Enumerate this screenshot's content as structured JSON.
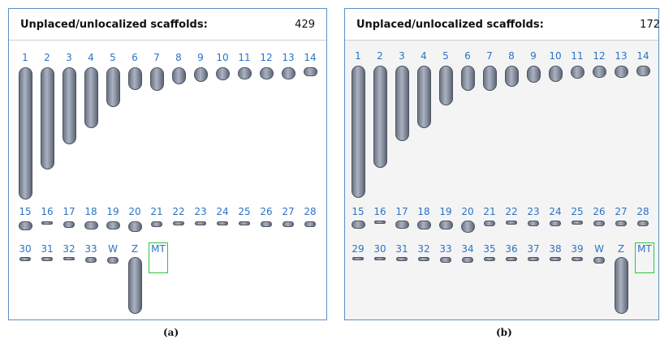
{
  "panels": [
    {
      "id": "a",
      "header_label": "Unplaced/unlocalized scaffolds:",
      "header_count": "429",
      "caption": "(a)",
      "rows": [
        [
          {
            "label": "1",
            "length": 1.0
          },
          {
            "label": "2",
            "length": 0.77
          },
          {
            "label": "3",
            "length": 0.58
          },
          {
            "label": "4",
            "length": 0.46
          },
          {
            "label": "5",
            "length": 0.3
          },
          {
            "label": "6",
            "length": 0.17
          },
          {
            "label": "7",
            "length": 0.18
          },
          {
            "label": "8",
            "length": 0.13
          },
          {
            "label": "9",
            "length": 0.11
          },
          {
            "label": "10",
            "length": 0.1
          },
          {
            "label": "11",
            "length": 0.09
          },
          {
            "label": "12",
            "length": 0.09
          },
          {
            "label": "13",
            "length": 0.09
          },
          {
            "label": "14",
            "length": 0.07
          }
        ],
        [
          {
            "label": "15",
            "length": 0.07
          },
          {
            "label": "16",
            "length": 0.02
          },
          {
            "label": "17",
            "length": 0.05
          },
          {
            "label": "18",
            "length": 0.06
          },
          {
            "label": "19",
            "length": 0.06
          },
          {
            "label": "20",
            "length": 0.08
          },
          {
            "label": "21",
            "length": 0.04
          },
          {
            "label": "22",
            "length": 0.03
          },
          {
            "label": "23",
            "length": 0.03
          },
          {
            "label": "24",
            "length": 0.03
          },
          {
            "label": "25",
            "length": 0.03
          },
          {
            "label": "26",
            "length": 0.04
          },
          {
            "label": "27",
            "length": 0.04
          },
          {
            "label": "28",
            "length": 0.04
          }
        ],
        [
          {
            "label": "30",
            "length": 0.03
          },
          {
            "label": "31",
            "length": 0.03
          },
          {
            "label": "32",
            "length": 0.02
          },
          {
            "label": "33",
            "length": 0.04
          },
          {
            "label": "W",
            "length": 0.05
          },
          {
            "label": "Z",
            "length": 0.43
          },
          {
            "label": "MT",
            "length": 0,
            "highlight": true
          }
        ]
      ]
    },
    {
      "id": "b",
      "header_label": "Unplaced/unlocalized scaffolds:",
      "header_count": "172",
      "caption": "(b)",
      "rows": [
        [
          {
            "label": "1",
            "length": 1.0
          },
          {
            "label": "2",
            "length": 0.77
          },
          {
            "label": "3",
            "length": 0.57
          },
          {
            "label": "4",
            "length": 0.47
          },
          {
            "label": "5",
            "length": 0.3
          },
          {
            "label": "6",
            "length": 0.19
          },
          {
            "label": "7",
            "length": 0.19
          },
          {
            "label": "8",
            "length": 0.16
          },
          {
            "label": "9",
            "length": 0.13
          },
          {
            "label": "10",
            "length": 0.12
          },
          {
            "label": "11",
            "length": 0.1
          },
          {
            "label": "12",
            "length": 0.09
          },
          {
            "label": "13",
            "length": 0.09
          },
          {
            "label": "14",
            "length": 0.08
          }
        ],
        [
          {
            "label": "15",
            "length": 0.06
          },
          {
            "label": "16",
            "length": 0.02
          },
          {
            "label": "17",
            "length": 0.06
          },
          {
            "label": "18",
            "length": 0.07
          },
          {
            "label": "19",
            "length": 0.07
          },
          {
            "label": "20",
            "length": 0.09
          },
          {
            "label": "21",
            "length": 0.04
          },
          {
            "label": "22",
            "length": 0.03
          },
          {
            "label": "23",
            "length": 0.04
          },
          {
            "label": "24",
            "length": 0.04
          },
          {
            "label": "25",
            "length": 0.03
          },
          {
            "label": "26",
            "length": 0.04
          },
          {
            "label": "27",
            "length": 0.04
          },
          {
            "label": "28",
            "length": 0.04
          }
        ],
        [
          {
            "label": "29",
            "length": 0.02
          },
          {
            "label": "30",
            "length": 0.02
          },
          {
            "label": "31",
            "length": 0.03
          },
          {
            "label": "32",
            "length": 0.03
          },
          {
            "label": "33",
            "length": 0.04
          },
          {
            "label": "34",
            "length": 0.04
          },
          {
            "label": "35",
            "length": 0.03
          },
          {
            "label": "36",
            "length": 0.03
          },
          {
            "label": "37",
            "length": 0.03
          },
          {
            "label": "38",
            "length": 0.03
          },
          {
            "label": "39",
            "length": 0.03
          },
          {
            "label": "W",
            "length": 0.05
          },
          {
            "label": "Z",
            "length": 0.43
          },
          {
            "label": "MT",
            "length": 0,
            "highlight": true
          }
        ]
      ]
    }
  ],
  "colors": {
    "label_blue": "#2a73c4",
    "chromosome_gray": "#8a92a2",
    "mt_highlight": "#2fc43a",
    "panel_border": "#5f8ec6"
  }
}
